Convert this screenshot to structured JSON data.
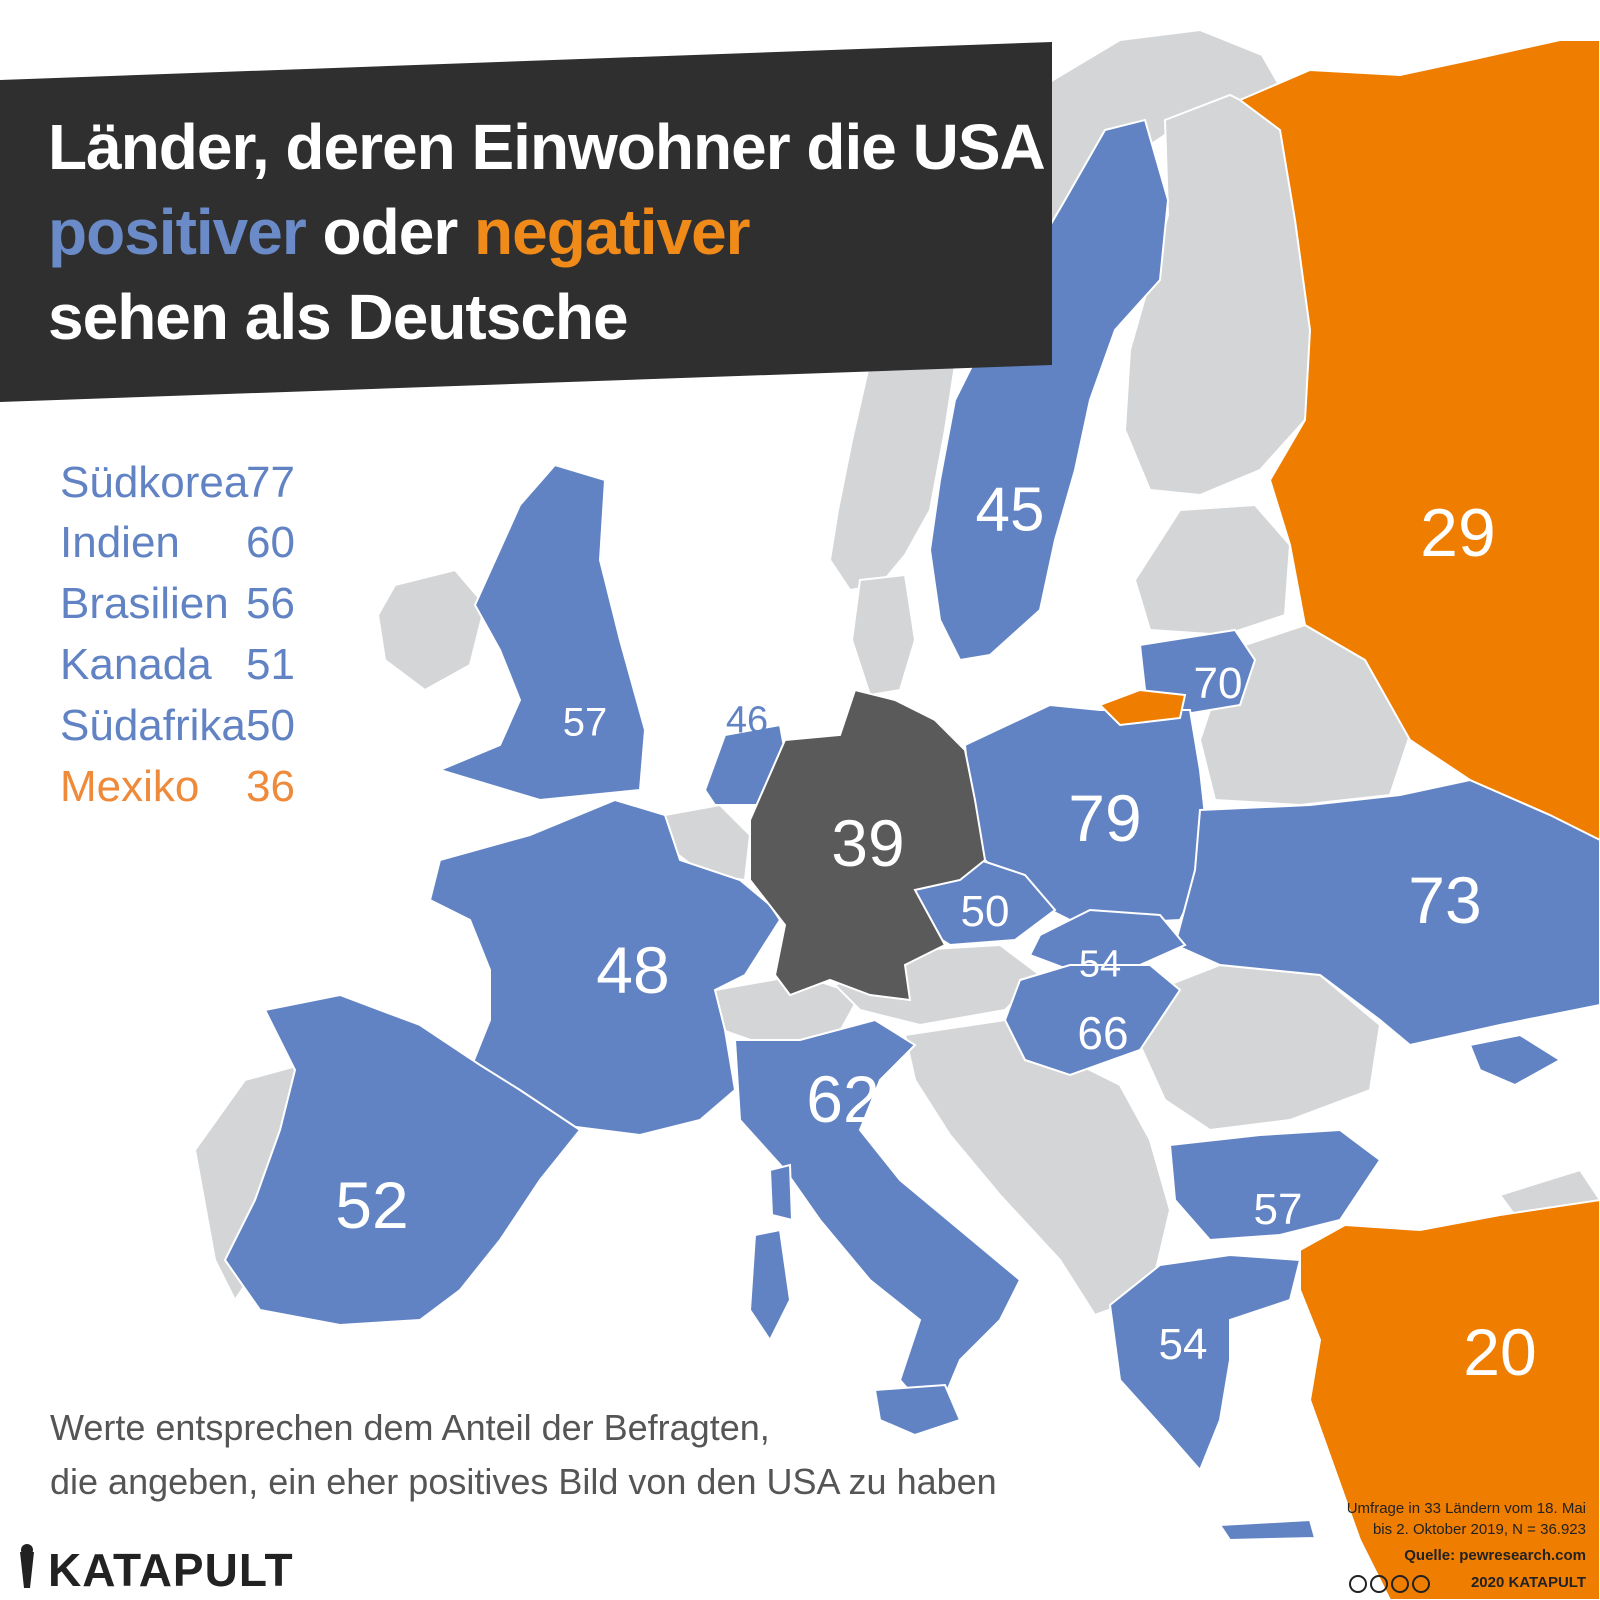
{
  "title": {
    "line1": "Länder, deren Einwohner die USA",
    "line2_pos": "positiver",
    "line2_mid": " oder ",
    "line2_neg": "negativer",
    "line3": "sehen als Deutsche"
  },
  "colors": {
    "positive": "#6183c4",
    "negative": "#ef7d00",
    "germany": "#5a5a5a",
    "neutral": "#d4d5d7",
    "title_bg": "#2f2f2f"
  },
  "legend": [
    {
      "name": "Südkorea",
      "value": "77",
      "status": "positive"
    },
    {
      "name": "Indien",
      "value": "60",
      "status": "positive"
    },
    {
      "name": "Brasilien",
      "value": "56",
      "status": "positive"
    },
    {
      "name": "Kanada",
      "value": "51",
      "status": "positive"
    },
    {
      "name": "Südafrika",
      "value": "50",
      "status": "positive"
    },
    {
      "name": "Mexiko",
      "value": "36",
      "status": "negative"
    }
  ],
  "map_values": {
    "sweden": "45",
    "russia": "29",
    "lithuania": "70",
    "uk": "57",
    "netherlands": "46",
    "germany": "39",
    "poland": "79",
    "ukraine": "73",
    "czechia": "50",
    "slovakia": "54",
    "hungary": "66",
    "france": "48",
    "italy": "62",
    "spain": "52",
    "bulgaria": "57",
    "greece": "54",
    "turkey": "20"
  },
  "note": {
    "line1": "Werte entsprechen dem Anteil der Befragten,",
    "line2": "die angeben, ein eher positives Bild von den USA zu haben"
  },
  "source": {
    "line1": "Umfrage in 33 Ländern vom 18. Mai",
    "line2": "bis 2. Oktober 2019, N = 36.923",
    "line3": "Quelle: pewresearch.com",
    "line4": "2020 KATAPULT"
  },
  "brand": {
    "logo_text": "KATAPULT",
    "icon": "katapult-icon",
    "license_icons": [
      "cc-icon",
      "by-icon",
      "nc-icon",
      "nd-icon"
    ]
  }
}
